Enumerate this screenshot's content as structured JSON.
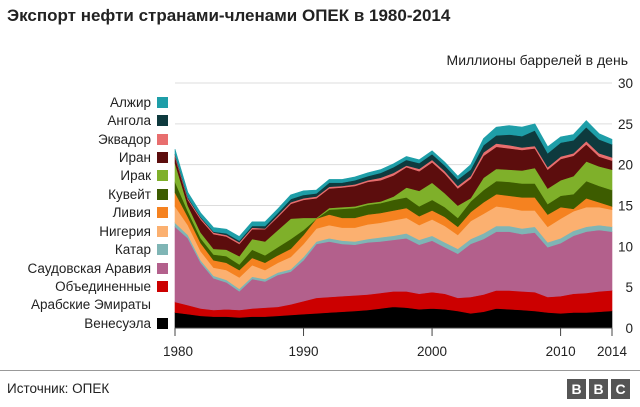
{
  "title": "Экспорт нефти странами-членами ОПЕК в 1980-2014",
  "source": "Источник: ОПЕК",
  "logo": [
    "B",
    "B",
    "C"
  ],
  "chart_data": {
    "type": "area",
    "stacked": true,
    "title": "Экспорт нефти странами-членами ОПЕК в 1980-2014",
    "ylabel": "Миллионы баррелей в день",
    "xlim": [
      1980,
      2014
    ],
    "ylim": [
      0,
      30
    ],
    "yticks": [
      0,
      5,
      10,
      15,
      20,
      25,
      30
    ],
    "xticks": [
      "1980",
      "1990",
      "2000",
      "2010",
      "2014"
    ],
    "x": [
      1980,
      1981,
      1982,
      1983,
      1984,
      1985,
      1986,
      1987,
      1988,
      1989,
      1990,
      1991,
      1992,
      1993,
      1994,
      1995,
      1996,
      1997,
      1998,
      1999,
      2000,
      2001,
      2002,
      2003,
      2004,
      2005,
      2006,
      2007,
      2008,
      2009,
      2010,
      2011,
      2012,
      2013,
      2014
    ],
    "series": [
      {
        "name": "Венесуэла",
        "color": "#000000",
        "values": [
          1.9,
          1.7,
          1.5,
          1.4,
          1.4,
          1.3,
          1.4,
          1.4,
          1.5,
          1.6,
          1.7,
          1.8,
          1.9,
          2.0,
          2.1,
          2.2,
          2.4,
          2.6,
          2.5,
          2.3,
          2.4,
          2.3,
          2.1,
          1.8,
          2.0,
          2.4,
          2.3,
          2.2,
          2.1,
          1.9,
          1.8,
          1.9,
          1.9,
          2.0,
          2.1
        ]
      },
      {
        "name": "Объединенные Арабские Эмираты",
        "color": "#cc0000",
        "values": [
          1.3,
          1.1,
          0.9,
          0.8,
          0.9,
          0.9,
          1.0,
          1.1,
          1.1,
          1.3,
          1.6,
          1.9,
          1.9,
          1.9,
          1.9,
          1.9,
          1.9,
          1.9,
          2.0,
          1.9,
          2.0,
          1.9,
          1.6,
          2.0,
          2.1,
          2.2,
          2.3,
          2.3,
          2.3,
          1.9,
          2.1,
          2.3,
          2.4,
          2.5,
          2.5
        ]
      },
      {
        "name": "Саудовская Аравия",
        "color": "#b3608c",
        "values": [
          9.2,
          8.2,
          5.6,
          3.9,
          3.3,
          2.3,
          3.6,
          3.2,
          3.9,
          4.0,
          5.0,
          6.6,
          6.8,
          6.4,
          6.2,
          6.4,
          6.3,
          6.3,
          6.5,
          6.0,
          6.3,
          5.7,
          5.4,
          6.5,
          6.8,
          7.2,
          7.2,
          7.0,
          7.3,
          6.1,
          6.5,
          7.1,
          7.5,
          7.5,
          7.2
        ]
      },
      {
        "name": "Катар",
        "color": "#7fb5b5",
        "values": [
          0.5,
          0.4,
          0.3,
          0.3,
          0.3,
          0.3,
          0.3,
          0.3,
          0.3,
          0.3,
          0.4,
          0.3,
          0.4,
          0.4,
          0.4,
          0.4,
          0.5,
          0.5,
          0.6,
          0.6,
          0.6,
          0.6,
          0.6,
          0.6,
          0.7,
          0.7,
          0.7,
          0.7,
          0.7,
          0.6,
          0.6,
          0.6,
          0.6,
          0.6,
          0.6
        ]
      },
      {
        "name": "Нигерия",
        "color": "#fbb070",
        "values": [
          2.0,
          1.2,
          1.1,
          1.0,
          1.2,
          1.4,
          1.4,
          1.1,
          1.2,
          1.5,
          1.6,
          1.6,
          1.6,
          1.6,
          1.7,
          1.8,
          1.8,
          1.9,
          1.9,
          1.8,
          2.0,
          2.0,
          1.7,
          2.2,
          2.4,
          2.4,
          2.2,
          2.2,
          2.0,
          1.9,
          2.4,
          2.4,
          2.4,
          2.2,
          2.1
        ]
      },
      {
        "name": "Ливия",
        "color": "#f58220",
        "values": [
          1.7,
          1.0,
          1.0,
          0.9,
          0.9,
          0.9,
          0.9,
          0.9,
          0.9,
          1.0,
          1.1,
          1.2,
          1.3,
          1.2,
          1.2,
          1.2,
          1.2,
          1.2,
          1.2,
          1.1,
          1.1,
          1.1,
          1.0,
          1.1,
          1.4,
          1.5,
          1.5,
          1.6,
          1.6,
          1.5,
          1.4,
          0.3,
          1.1,
          0.6,
          0.4
        ]
      },
      {
        "name": "Кувейт",
        "color": "#3d5c00",
        "values": [
          1.3,
          0.7,
          0.6,
          0.7,
          0.8,
          0.7,
          1.0,
          0.9,
          1.0,
          1.2,
          0.6,
          0.0,
          0.6,
          1.1,
          1.2,
          1.2,
          1.2,
          1.3,
          1.3,
          1.2,
          1.3,
          1.2,
          1.1,
          1.3,
          1.5,
          1.6,
          1.7,
          1.7,
          1.7,
          1.3,
          1.4,
          1.8,
          2.1,
          2.0,
          2.0
        ]
      },
      {
        "name": "Ирак",
        "color": "#7fb02a",
        "values": [
          2.3,
          0.7,
          0.7,
          0.7,
          0.8,
          1.0,
          1.3,
          1.7,
          2.1,
          2.5,
          1.5,
          0.1,
          0.2,
          0.2,
          0.2,
          0.2,
          0.2,
          0.4,
          1.2,
          1.9,
          2.1,
          1.7,
          1.5,
          0.4,
          1.5,
          1.5,
          1.5,
          1.6,
          1.9,
          1.9,
          1.9,
          2.2,
          2.4,
          2.4,
          2.5
        ]
      },
      {
        "name": "Иран",
        "color": "#5c0d0d",
        "values": [
          0.8,
          0.7,
          1.6,
          1.8,
          1.6,
          1.5,
          1.2,
          1.5,
          1.6,
          1.8,
          2.2,
          2.4,
          2.4,
          2.4,
          2.5,
          2.6,
          2.6,
          2.6,
          2.5,
          2.4,
          2.5,
          2.4,
          2.1,
          2.4,
          2.7,
          2.7,
          2.6,
          2.5,
          2.4,
          2.3,
          2.6,
          2.5,
          2.1,
          1.2,
          1.1
        ]
      },
      {
        "name": "Эквадор",
        "color": "#e86e6e",
        "values": [
          0.2,
          0.2,
          0.2,
          0.2,
          0.2,
          0.2,
          0.2,
          0.1,
          0.2,
          0.2,
          0.2,
          0.2,
          0.2,
          0.2,
          0.2,
          0.2,
          0.3,
          0.3,
          0.2,
          0.3,
          0.3,
          0.3,
          0.3,
          0.3,
          0.4,
          0.4,
          0.4,
          0.3,
          0.3,
          0.3,
          0.3,
          0.3,
          0.4,
          0.4,
          0.4
        ]
      },
      {
        "name": "Ангола",
        "color": "#0e3a3e",
        "values": [
          0.1,
          0.1,
          0.1,
          0.1,
          0.2,
          0.2,
          0.2,
          0.3,
          0.3,
          0.4,
          0.4,
          0.4,
          0.5,
          0.4,
          0.5,
          0.5,
          0.6,
          0.7,
          0.7,
          0.7,
          0.7,
          0.7,
          0.8,
          0.8,
          0.9,
          1.0,
          1.3,
          1.4,
          1.9,
          1.7,
          1.7,
          1.6,
          1.7,
          1.7,
          1.6
        ]
      },
      {
        "name": "Алжир",
        "color": "#1e9ea8",
        "values": [
          0.6,
          0.6,
          0.5,
          0.5,
          0.5,
          0.5,
          0.5,
          0.5,
          0.5,
          0.5,
          0.5,
          0.4,
          0.4,
          0.4,
          0.4,
          0.4,
          0.4,
          0.4,
          0.4,
          0.4,
          0.4,
          0.4,
          0.4,
          0.6,
          0.8,
          1.0,
          1.1,
          1.1,
          0.8,
          0.8,
          0.7,
          0.7,
          0.8,
          0.7,
          0.6
        ]
      }
    ]
  },
  "legend": {
    "items": [
      {
        "label": "Алжир"
      },
      {
        "label": "Ангола"
      },
      {
        "label": "Эквадор"
      },
      {
        "label": "Иран"
      },
      {
        "label": "Ирак"
      },
      {
        "label": "Кувейт"
      },
      {
        "label": "Ливия"
      },
      {
        "label": "Нигерия"
      },
      {
        "label": "Катар"
      },
      {
        "label": "Саудовская Аравия"
      },
      {
        "label": "Объединенные",
        "sub": "Арабские Эмираты"
      },
      {
        "label": "Венесуэла"
      }
    ]
  }
}
